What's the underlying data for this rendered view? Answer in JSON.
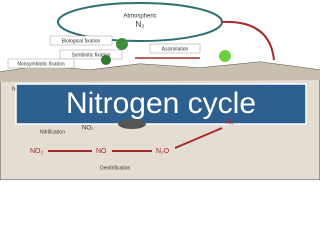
{
  "title": "Nitrogen cycle",
  "atmosphere": {
    "label": "Atmospheric",
    "formula": "N₂"
  },
  "processes": {
    "biological_fixation": "Biological fixation",
    "symbiotic_fixation": "Symbiotic fixation",
    "nonsymbiotic_fixation": "Nonsymbiotic fixation",
    "assimilation": "Assimilation",
    "nitrification": "Nitrification",
    "denitrification": "Denitrification"
  },
  "compounds": {
    "no2_top": "NO₂",
    "no2": "NO₂",
    "no": "NO",
    "n2o": "N₂O",
    "n2": "N₂",
    "partial": "Non"
  }
}
